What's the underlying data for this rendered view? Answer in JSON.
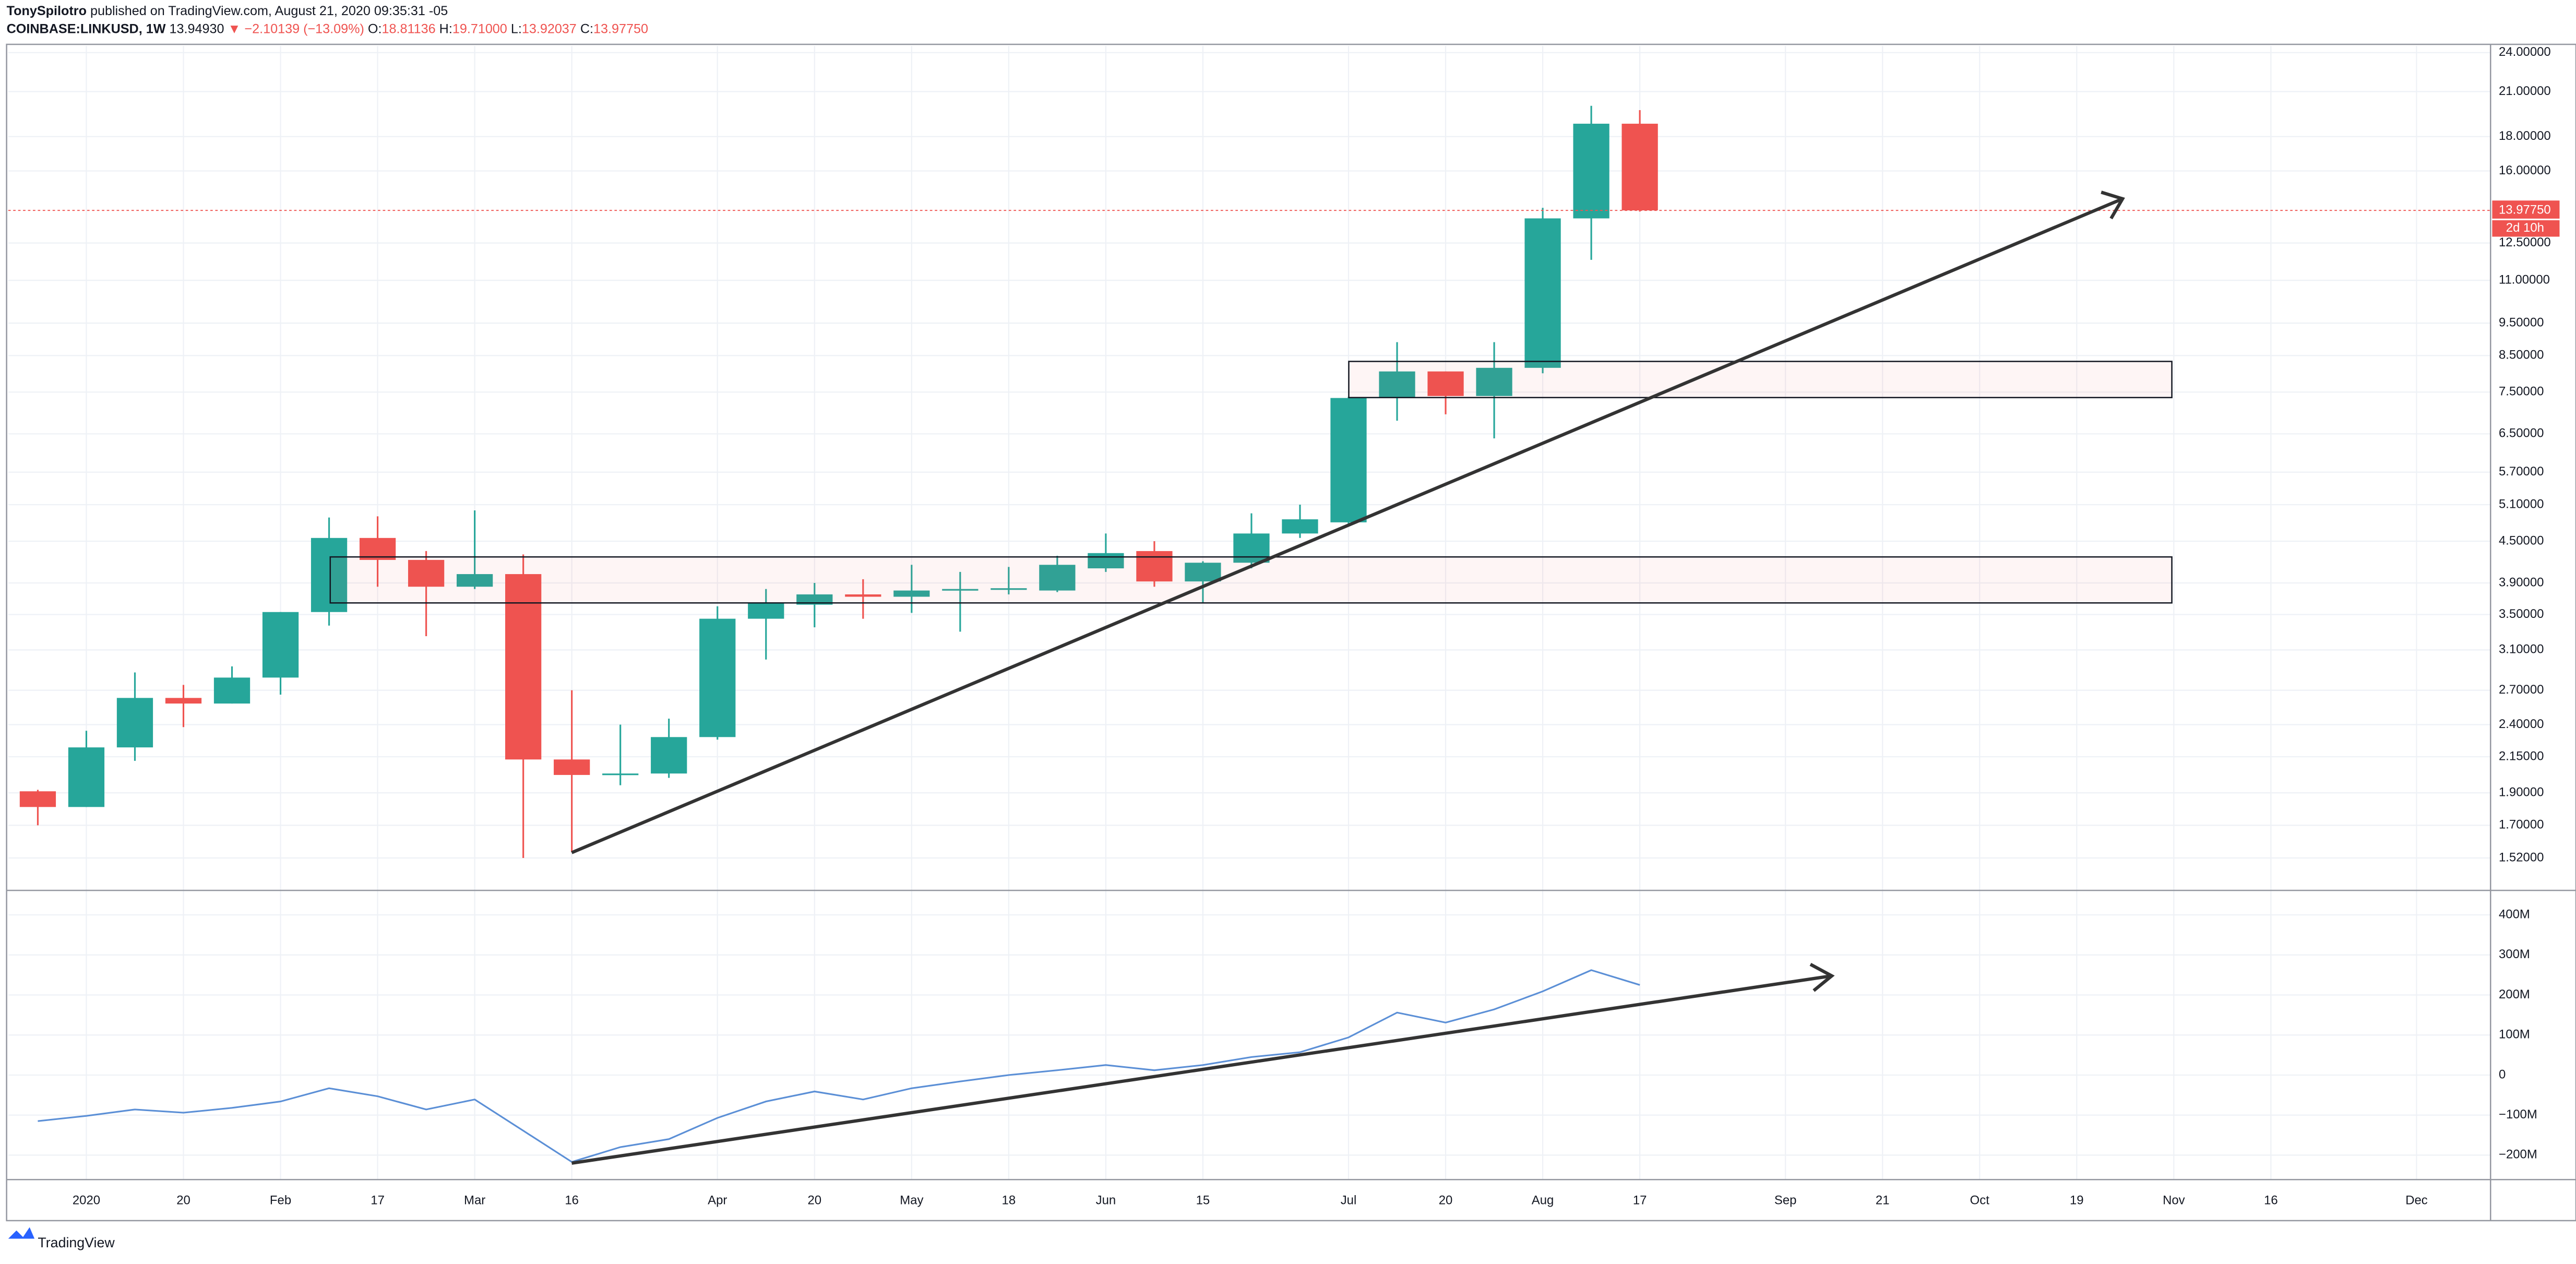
{
  "header": {
    "author": "TonySpilotro",
    "published": "published on TradingView.com, August 21, 2020 09:35:31 -05",
    "symbol": "COINBASE:LINKUSD, 1W",
    "last": "13.94930",
    "change": "▼ −2.10139 (−13.09%)",
    "ohlc": [
      {
        "key": "O:",
        "value": "18.81136"
      },
      {
        "key": "H:",
        "value": "19.71000"
      },
      {
        "key": "L:",
        "value": "13.92037"
      },
      {
        "key": "C:",
        "value": "13.97750"
      }
    ]
  },
  "logo": "TradingView",
  "chart_data": [
    {
      "type": "candlestick",
      "log_scale": true,
      "grid": true,
      "categories": [
        null,
        "2020",
        null,
        "20",
        null,
        "Feb",
        null,
        "17",
        null,
        "Mar",
        null,
        "16",
        null,
        null,
        "Apr",
        null,
        "20",
        null,
        "May",
        null,
        "18",
        null,
        "Jun",
        null,
        "15",
        null,
        null,
        "Jul",
        null,
        "20",
        null,
        "Aug",
        null,
        "17",
        null,
        null,
        "Sep",
        null,
        "21",
        null,
        "Oct",
        null,
        "19",
        null,
        "Nov",
        null,
        "16",
        null,
        null,
        "Dec",
        null
      ],
      "series": [
        {
          "up_color": "#26a69a",
          "down_color": "#ef5350",
          "open": [
            1.91,
            1.81,
            2.22,
            2.63,
            2.58,
            2.82,
            3.53,
            4.55,
            4.22,
            3.85,
            4.02,
            2.13,
            2.02,
            2.03,
            2.3,
            3.45,
            3.62,
            3.75,
            3.72,
            3.8,
            3.82,
            3.8,
            4.1,
            4.35,
            3.92,
            4.18,
            4.62,
            4.8,
            7.35,
            8.05,
            7.4,
            8.15,
            13.6,
            18.81136
          ],
          "high": [
            1.92,
            2.35,
            2.87,
            2.75,
            2.93,
            3.53,
            4.88,
            4.9,
            4.35,
            5.0,
            4.3,
            2.7,
            2.4,
            2.45,
            3.6,
            3.82,
            3.9,
            3.95,
            4.15,
            4.05,
            4.12,
            4.28,
            4.62,
            4.5,
            4.2,
            4.95,
            5.1,
            7.38,
            8.9,
            8.05,
            8.9,
            14.1,
            20.0,
            19.71
          ],
          "low": [
            1.7,
            1.81,
            2.12,
            2.38,
            2.58,
            2.66,
            3.37,
            3.85,
            3.25,
            3.82,
            1.52,
            1.55,
            1.95,
            2.0,
            2.28,
            3.0,
            3.35,
            3.45,
            3.52,
            3.3,
            3.75,
            3.78,
            4.05,
            3.85,
            3.65,
            4.1,
            4.55,
            4.75,
            6.8,
            6.95,
            6.4,
            8.0,
            11.8,
            13.92037
          ],
          "close": [
            1.81,
            2.22,
            2.63,
            2.58,
            2.82,
            3.53,
            4.55,
            4.22,
            3.85,
            4.02,
            2.13,
            2.02,
            2.03,
            2.3,
            3.45,
            3.65,
            3.75,
            3.72,
            3.8,
            3.82,
            3.83,
            4.15,
            4.32,
            3.92,
            4.18,
            4.62,
            4.85,
            7.35,
            8.05,
            7.4,
            8.15,
            13.6,
            18.81136,
            13.9775
          ]
        }
      ],
      "ylim": [
        1.36,
        24.55
      ],
      "yticks": [
        {
          "value": 24,
          "label": "24.00000"
        },
        {
          "value": 21,
          "label": "21.00000"
        },
        {
          "value": 18,
          "label": "18.00000"
        },
        {
          "value": 16,
          "label": "16.00000"
        },
        {
          "value": 12.5,
          "label": "12.50000"
        },
        {
          "value": 11,
          "label": "11.00000"
        },
        {
          "value": 9.5,
          "label": "9.50000"
        },
        {
          "value": 8.5,
          "label": "8.50000"
        },
        {
          "value": 7.5,
          "label": "7.50000"
        },
        {
          "value": 6.5,
          "label": "6.50000"
        },
        {
          "value": 5.7,
          "label": "5.70000"
        },
        {
          "value": 5.1,
          "label": "5.10000"
        },
        {
          "value": 4.5,
          "label": "4.50000"
        },
        {
          "value": 3.9,
          "label": "3.90000"
        },
        {
          "value": 3.5,
          "label": "3.50000"
        },
        {
          "value": 3.1,
          "label": "3.10000"
        },
        {
          "value": 2.7,
          "label": "2.70000"
        },
        {
          "value": 2.4,
          "label": "2.40000"
        },
        {
          "value": 2.15,
          "label": "2.15000"
        },
        {
          "value": 1.9,
          "label": "1.90000"
        },
        {
          "value": 1.7,
          "label": "1.70000"
        },
        {
          "value": 1.52,
          "label": "1.52000"
        }
      ],
      "last_price": {
        "value": 13.9775,
        "label": "13.97750",
        "color": "#ef5350"
      },
      "countdown": "2d 10h"
    },
    {
      "type": "line",
      "grid": true,
      "series": [
        {
          "color": "#5b8fd6",
          "values": [
            -115000000,
            -102000000,
            -86000000,
            -94000000,
            -82000000,
            -66000000,
            -33000000,
            -53000000,
            -86000000,
            -61000000,
            -139000000,
            -217000000,
            -180000000,
            -160000000,
            -107000000,
            -66000000,
            -41000000,
            -61000000,
            -33000000,
            -16000000,
            0,
            12000000,
            25000000,
            12000000,
            25000000,
            45000000,
            57000000,
            94000000,
            156000000,
            131000000,
            164000000,
            209000000,
            262000000,
            225000000
          ]
        }
      ],
      "ylim": [
        -261000000,
        457000000
      ],
      "yticks": [
        {
          "value": 400000000,
          "label": "400M"
        },
        {
          "value": 300000000,
          "label": "300M"
        },
        {
          "value": 200000000,
          "label": "200M"
        },
        {
          "value": 100000000,
          "label": "100M"
        },
        0,
        {
          "value": -100000000,
          "label": "−100M"
        },
        {
          "value": -200000000,
          "label": "−200M"
        }
      ]
    }
  ]
}
